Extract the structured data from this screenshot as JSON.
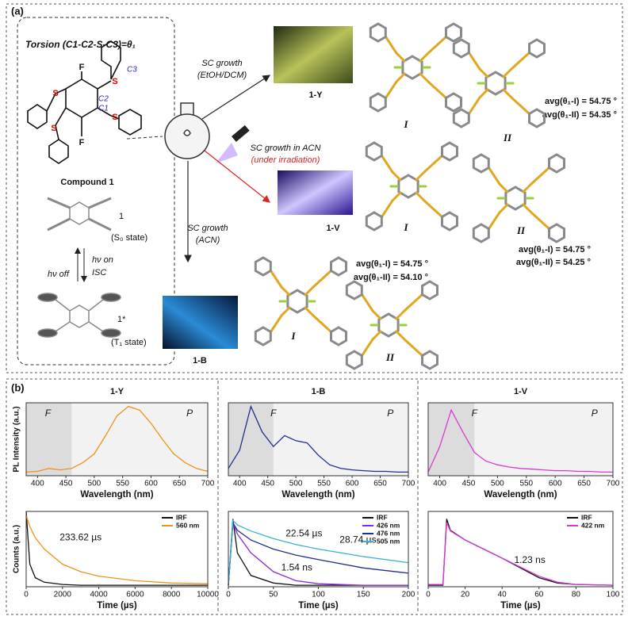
{
  "panel_a": {
    "label": "(a)",
    "torsion": "Torsion (C1-C2-S-C3)=θ₁",
    "atoms": {
      "f_top": "F",
      "f_bottom": "F",
      "s": [
        "S",
        "S",
        "S",
        "S"
      ],
      "c3": "C3",
      "c2": "C2",
      "c1": "C1"
    },
    "compound": "Compound 1",
    "ground": {
      "label": "1",
      "state": "(S₀ state)"
    },
    "hv_on": "hν on",
    "isc": "ISC",
    "hv_off": "hν off",
    "excited": {
      "label": "1*",
      "state": "(T₁ state)"
    },
    "routes": [
      {
        "text": "SC growth",
        "solvent": "(EtOH/DCM)",
        "crystal": "1-Y"
      },
      {
        "text": "SC growth in ACN",
        "solvent": "(under irradiation)",
        "crystal": "1-V"
      },
      {
        "text": "SC growth",
        "solvent": "(ACN)",
        "crystal": "1-B"
      }
    ],
    "conformers": [
      [
        "I",
        "II"
      ],
      [
        "I",
        "II"
      ],
      [
        "I",
        "II"
      ]
    ],
    "avg": [
      [
        "avg(θ₁-I) = 54.75 °",
        "avg(θ₁-II) = 54.35 °"
      ],
      [
        "avg(θ₁-I) = 54.75 °",
        "avg(θ₁-II) = 54.25 °"
      ],
      [
        "avg(θ₁-I) = 54.75 °",
        "avg(θ₁-II) = 54.10 °"
      ]
    ]
  },
  "panel_b": {
    "label": "(b)"
  },
  "chart_data": [
    {
      "type": "line",
      "title": "1-Y",
      "xlabel": "Wavelength (nm)",
      "ylabel": "PL Intensity (a.u.)",
      "xlim": [
        380,
        700
      ],
      "xticks": [
        400,
        450,
        500,
        550,
        600,
        650,
        700
      ],
      "ylim": [
        0,
        1
      ],
      "f_region": [
        380,
        460
      ],
      "annotations": [
        "F",
        "P"
      ],
      "x": [
        380,
        400,
        420,
        440,
        460,
        480,
        500,
        520,
        540,
        560,
        580,
        600,
        620,
        640,
        660,
        680,
        700
      ],
      "series": [
        {
          "name": "1-Y",
          "color": "#f0921c",
          "values": [
            0.05,
            0.06,
            0.1,
            0.08,
            0.1,
            0.18,
            0.3,
            0.55,
            0.82,
            0.95,
            0.9,
            0.72,
            0.5,
            0.3,
            0.18,
            0.1,
            0.06
          ]
        }
      ]
    },
    {
      "type": "line",
      "title": "1-B",
      "xlabel": "Wavelength (nm)",
      "xlim": [
        380,
        700
      ],
      "xticks": [
        400,
        450,
        500,
        550,
        600,
        650,
        700
      ],
      "ylim": [
        0,
        1
      ],
      "f_region": [
        380,
        460
      ],
      "annotations": [
        "F",
        "P"
      ],
      "x": [
        380,
        400,
        420,
        440,
        460,
        480,
        500,
        520,
        540,
        560,
        580,
        600,
        620,
        640,
        660,
        680,
        700
      ],
      "series": [
        {
          "name": "1-B",
          "color": "#1f2f8f",
          "values": [
            0.1,
            0.35,
            0.95,
            0.6,
            0.4,
            0.55,
            0.48,
            0.45,
            0.28,
            0.15,
            0.1,
            0.08,
            0.07,
            0.06,
            0.06,
            0.05,
            0.05
          ]
        }
      ]
    },
    {
      "type": "line",
      "title": "1-V",
      "xlabel": "Wavelength (nm)",
      "xlim": [
        380,
        700
      ],
      "xticks": [
        400,
        450,
        500,
        550,
        600,
        650,
        700
      ],
      "ylim": [
        0,
        1
      ],
      "f_region": [
        380,
        460
      ],
      "annotations": [
        "F",
        "P"
      ],
      "x": [
        380,
        400,
        420,
        440,
        460,
        480,
        500,
        520,
        540,
        560,
        580,
        600,
        620,
        640,
        660,
        680,
        700
      ],
      "series": [
        {
          "name": "1-V",
          "color": "#d63ad6",
          "values": [
            0.05,
            0.4,
            0.9,
            0.6,
            0.32,
            0.2,
            0.15,
            0.12,
            0.1,
            0.09,
            0.08,
            0.07,
            0.07,
            0.06,
            0.06,
            0.05,
            0.05
          ]
        }
      ]
    },
    {
      "type": "line",
      "xlabel": "Time (µs)",
      "ylabel": "Counts (a.u.)",
      "xlim": [
        0,
        10000
      ],
      "xticks": [
        0,
        2000,
        4000,
        6000,
        8000,
        10000
      ],
      "ylim": [
        0,
        1
      ],
      "annotations": [
        "233.62 µs"
      ],
      "legend": "upper right",
      "x": [
        0,
        200,
        500,
        1000,
        2000,
        3000,
        4000,
        6000,
        8000,
        10000
      ],
      "series": [
        {
          "name": "IRF",
          "color": "#111111",
          "values": [
            1,
            0.3,
            0.12,
            0.06,
            0.03,
            0.02,
            0.02,
            0.02,
            0.02,
            0.02
          ]
        },
        {
          "name": "560 nm",
          "color": "#f0921c",
          "values": [
            0.95,
            0.8,
            0.65,
            0.5,
            0.3,
            0.2,
            0.14,
            0.08,
            0.05,
            0.04
          ]
        }
      ]
    },
    {
      "type": "line",
      "xlabel": "Time (µs)",
      "xlim": [
        0,
        200
      ],
      "xticks": [
        0,
        50,
        100,
        150,
        200
      ],
      "ylim": [
        0,
        1
      ],
      "annotations": [
        "22.54 µs",
        "28.74 µs",
        "1.54 ns"
      ],
      "legend": "upper right",
      "x": [
        0,
        5,
        10,
        25,
        50,
        75,
        100,
        150,
        200
      ],
      "series": [
        {
          "name": "IRF",
          "color": "#111111",
          "values": [
            0.02,
            0.9,
            0.45,
            0.15,
            0.05,
            0.02,
            0.02,
            0.02,
            0.02
          ]
        },
        {
          "name": "426 nm",
          "color": "#8b2be2",
          "values": [
            0.02,
            0.85,
            0.7,
            0.45,
            0.2,
            0.08,
            0.04,
            0.02,
            0.02
          ]
        },
        {
          "name": "476 nm",
          "color": "#1f2f8f",
          "values": [
            0.02,
            0.85,
            0.75,
            0.62,
            0.5,
            0.42,
            0.36,
            0.25,
            0.18
          ]
        },
        {
          "name": "505 nm",
          "color": "#3ab0d0",
          "values": [
            0.02,
            0.88,
            0.82,
            0.74,
            0.64,
            0.56,
            0.5,
            0.4,
            0.32
          ]
        }
      ]
    },
    {
      "type": "line",
      "xlabel": "Time (µs)",
      "xlim": [
        0,
        100
      ],
      "xticks": [
        0,
        20,
        40,
        60,
        80,
        100
      ],
      "ylim": [
        0,
        1
      ],
      "annotations": [
        "1.23 ns"
      ],
      "legend": "upper right",
      "x": [
        0,
        8,
        10,
        12,
        20,
        30,
        40,
        50,
        60,
        70,
        80,
        100
      ],
      "series": [
        {
          "name": "IRF",
          "color": "#111111",
          "values": [
            0.02,
            0.02,
            0.9,
            0.75,
            0.62,
            0.5,
            0.38,
            0.25,
            0.12,
            0.05,
            0.03,
            0.02
          ]
        },
        {
          "name": "422 nm",
          "color": "#d63ad6",
          "values": [
            0.03,
            0.03,
            0.85,
            0.74,
            0.62,
            0.5,
            0.38,
            0.26,
            0.14,
            0.06,
            0.03,
            0.02
          ]
        }
      ]
    }
  ]
}
